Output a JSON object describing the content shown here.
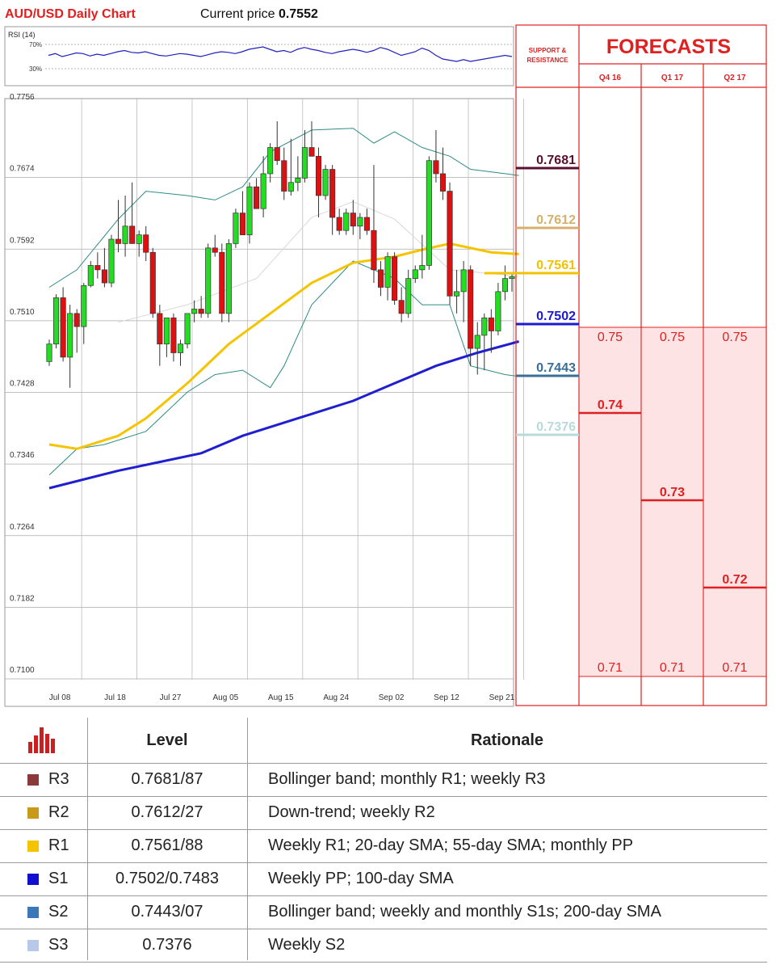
{
  "header": {
    "title": "AUD/USD Daily Chart",
    "price_label": "Current price",
    "price_value": "0.7552"
  },
  "rsi": {
    "label": "RSI (14)",
    "levels": [
      "70%",
      "30%"
    ],
    "values": [
      0.52,
      0.55,
      0.5,
      0.53,
      0.56,
      0.55,
      0.51,
      0.54,
      0.52,
      0.55,
      0.58,
      0.6,
      0.57,
      0.56,
      0.58,
      0.55,
      0.52,
      0.51,
      0.53,
      0.55,
      0.54,
      0.52,
      0.5,
      0.53,
      0.56,
      0.58,
      0.57,
      0.55,
      0.58,
      0.62,
      0.64,
      0.66,
      0.62,
      0.58,
      0.6,
      0.57,
      0.62,
      0.65,
      0.62,
      0.6,
      0.57,
      0.55,
      0.58,
      0.6,
      0.62,
      0.6,
      0.57,
      0.6,
      0.65,
      0.62,
      0.57,
      0.52,
      0.55,
      0.58,
      0.64,
      0.6,
      0.52,
      0.46,
      0.44,
      0.42,
      0.45,
      0.42,
      0.44,
      0.46,
      0.48,
      0.5,
      0.52,
      0.5
    ]
  },
  "chart_data": {
    "type": "candlestick",
    "title": "AUD/USD Daily Chart",
    "ylim": [
      0.71,
      0.7756
    ],
    "y_ticks": [
      "0.7756",
      "0.7674",
      "0.7592",
      "0.7510",
      "0.7428",
      "0.7346",
      "0.7264",
      "0.7182",
      "0.7100"
    ],
    "x_ticks": [
      "Jul 08",
      "Jul 18",
      "Jul 27",
      "Aug 05",
      "Aug 15",
      "Aug 24",
      "Sep 02",
      "Sep 12",
      "Sep 21"
    ],
    "candles": [
      [
        0.7455,
        0.748,
        0.745,
        0.7475
      ],
      [
        0.7475,
        0.7532,
        0.747,
        0.7528
      ],
      [
        0.7528,
        0.754,
        0.7455,
        0.746
      ],
      [
        0.746,
        0.752,
        0.7425,
        0.751
      ],
      [
        0.751,
        0.7515,
        0.7465,
        0.7495
      ],
      [
        0.7495,
        0.7545,
        0.7475,
        0.7542
      ],
      [
        0.7542,
        0.757,
        0.754,
        0.7565
      ],
      [
        0.7565,
        0.758,
        0.755,
        0.756
      ],
      [
        0.756,
        0.7585,
        0.754,
        0.7545
      ],
      [
        0.7545,
        0.76,
        0.754,
        0.7595
      ],
      [
        0.7595,
        0.764,
        0.758,
        0.759
      ],
      [
        0.759,
        0.7645,
        0.7575,
        0.761
      ],
      [
        0.761,
        0.766,
        0.759,
        0.759
      ],
      [
        0.759,
        0.7605,
        0.7575,
        0.76
      ],
      [
        0.76,
        0.761,
        0.757,
        0.758
      ],
      [
        0.758,
        0.7585,
        0.7505,
        0.751
      ],
      [
        0.751,
        0.752,
        0.745,
        0.7475
      ],
      [
        0.7475,
        0.75,
        0.746,
        0.7505
      ],
      [
        0.7505,
        0.751,
        0.7455,
        0.7465
      ],
      [
        0.7465,
        0.748,
        0.745,
        0.7475
      ],
      [
        0.7475,
        0.751,
        0.747,
        0.751
      ],
      [
        0.751,
        0.7525,
        0.75,
        0.7515
      ],
      [
        0.7515,
        0.753,
        0.7505,
        0.751
      ],
      [
        0.751,
        0.759,
        0.7505,
        0.7585
      ],
      [
        0.7585,
        0.76,
        0.7575,
        0.758
      ],
      [
        0.758,
        0.759,
        0.75,
        0.751
      ],
      [
        0.751,
        0.7595,
        0.75,
        0.759
      ],
      [
        0.759,
        0.763,
        0.7585,
        0.7625
      ],
      [
        0.7625,
        0.765,
        0.76,
        0.76
      ],
      [
        0.76,
        0.766,
        0.759,
        0.7655
      ],
      [
        0.7655,
        0.7665,
        0.763,
        0.763
      ],
      [
        0.763,
        0.769,
        0.762,
        0.767
      ],
      [
        0.767,
        0.7705,
        0.766,
        0.77
      ],
      [
        0.77,
        0.773,
        0.768,
        0.7685
      ],
      [
        0.7685,
        0.77,
        0.764,
        0.765
      ],
      [
        0.765,
        0.771,
        0.7645,
        0.766
      ],
      [
        0.766,
        0.769,
        0.765,
        0.7665
      ],
      [
        0.7665,
        0.772,
        0.766,
        0.77
      ],
      [
        0.77,
        0.773,
        0.769,
        0.769
      ],
      [
        0.769,
        0.77,
        0.762,
        0.7645
      ],
      [
        0.7645,
        0.768,
        0.764,
        0.7675
      ],
      [
        0.7675,
        0.768,
        0.76,
        0.762
      ],
      [
        0.762,
        0.763,
        0.76,
        0.7605
      ],
      [
        0.7605,
        0.763,
        0.76,
        0.7625
      ],
      [
        0.7625,
        0.764,
        0.76,
        0.761
      ],
      [
        0.761,
        0.7625,
        0.7595,
        0.762
      ],
      [
        0.762,
        0.763,
        0.76,
        0.7605
      ],
      [
        0.7605,
        0.768,
        0.7545,
        0.756
      ],
      [
        0.756,
        0.757,
        0.753,
        0.754
      ],
      [
        0.754,
        0.758,
        0.7525,
        0.7575
      ],
      [
        0.7575,
        0.758,
        0.752,
        0.7525
      ],
      [
        0.7525,
        0.754,
        0.75,
        0.751
      ],
      [
        0.751,
        0.756,
        0.7505,
        0.755
      ],
      [
        0.755,
        0.7565,
        0.7545,
        0.756
      ],
      [
        0.756,
        0.76,
        0.755,
        0.7565
      ],
      [
        0.7565,
        0.769,
        0.756,
        0.7685
      ],
      [
        0.7685,
        0.772,
        0.766,
        0.767
      ],
      [
        0.767,
        0.77,
        0.764,
        0.765
      ],
      [
        0.765,
        0.766,
        0.752,
        0.753
      ],
      [
        0.753,
        0.756,
        0.751,
        0.7535
      ],
      [
        0.7535,
        0.757,
        0.75,
        0.756
      ],
      [
        0.756,
        0.7565,
        0.745,
        0.747
      ],
      [
        0.747,
        0.75,
        0.744,
        0.7485
      ],
      [
        0.7485,
        0.751,
        0.7445,
        0.7505
      ],
      [
        0.7505,
        0.7515,
        0.7465,
        0.749
      ],
      [
        0.749,
        0.7545,
        0.7485,
        0.7535
      ],
      [
        0.7535,
        0.7565,
        0.7525,
        0.755
      ],
      [
        0.755,
        0.7555,
        0.7535,
        0.7552
      ]
    ],
    "bb_upper": [
      [
        0,
        0.754
      ],
      [
        4,
        0.756
      ],
      [
        10,
        0.7618
      ],
      [
        14,
        0.765
      ],
      [
        20,
        0.7645
      ],
      [
        24,
        0.764
      ],
      [
        28,
        0.7655
      ],
      [
        32,
        0.7695
      ],
      [
        38,
        0.772
      ],
      [
        44,
        0.7722
      ],
      [
        47,
        0.7705
      ],
      [
        50,
        0.7718
      ],
      [
        54,
        0.77
      ],
      [
        58,
        0.769
      ],
      [
        61,
        0.7675
      ],
      [
        66,
        0.767
      ],
      [
        68,
        0.7668
      ]
    ],
    "bb_lower": [
      [
        0,
        0.7325
      ],
      [
        4,
        0.7355
      ],
      [
        8,
        0.736
      ],
      [
        14,
        0.7375
      ],
      [
        20,
        0.742
      ],
      [
        24,
        0.744
      ],
      [
        28,
        0.7445
      ],
      [
        32,
        0.7425
      ],
      [
        34,
        0.745
      ],
      [
        38,
        0.752
      ],
      [
        44,
        0.757
      ],
      [
        50,
        0.755
      ],
      [
        54,
        0.752
      ],
      [
        58,
        0.752
      ],
      [
        61,
        0.745
      ],
      [
        66,
        0.744
      ],
      [
        68,
        0.7438
      ]
    ],
    "bb_mid": [
      [
        10,
        0.75
      ],
      [
        20,
        0.752
      ],
      [
        30,
        0.755
      ],
      [
        38,
        0.762
      ],
      [
        44,
        0.7638
      ],
      [
        50,
        0.7618
      ],
      [
        58,
        0.756
      ],
      [
        66,
        0.7554
      ],
      [
        68,
        0.7552
      ]
    ],
    "sma_yellow": [
      [
        0,
        0.736
      ],
      [
        4,
        0.7355
      ],
      [
        10,
        0.737
      ],
      [
        14,
        0.739
      ],
      [
        20,
        0.743
      ],
      [
        26,
        0.7475
      ],
      [
        32,
        0.751
      ],
      [
        38,
        0.7545
      ],
      [
        44,
        0.7568
      ],
      [
        50,
        0.7575
      ],
      [
        54,
        0.7583
      ],
      [
        58,
        0.759
      ],
      [
        64,
        0.758
      ],
      [
        68,
        0.7578
      ]
    ],
    "sma_blue": [
      [
        0,
        0.731
      ],
      [
        10,
        0.733
      ],
      [
        16,
        0.734
      ],
      [
        22,
        0.735
      ],
      [
        28,
        0.737
      ],
      [
        36,
        0.739
      ],
      [
        44,
        0.741
      ],
      [
        50,
        0.743
      ],
      [
        56,
        0.745
      ],
      [
        62,
        0.7465
      ],
      [
        68,
        0.7478
      ]
    ]
  },
  "support_resistance": {
    "header": [
      "SUPPORT &",
      "RESISTANCE"
    ],
    "levels": [
      {
        "value": "0.7681",
        "color": "#5a0f2f"
      },
      {
        "value": "0.7612",
        "color": "#d6b06c"
      },
      {
        "value": "0.7561",
        "color": "#f2c200"
      },
      {
        "value": "0.7502",
        "color": "#1a1ad0"
      },
      {
        "value": "0.7443",
        "color": "#3a6e9a"
      },
      {
        "value": "0.7376",
        "color": "#b8dada"
      }
    ]
  },
  "forecasts": {
    "title": "FORECASTS",
    "columns": [
      {
        "label": "Q4 16",
        "top": "0.75",
        "mid": "0.74",
        "bottom": "0.71"
      },
      {
        "label": "Q1 17",
        "top": "0.75",
        "mid": "0.73",
        "bottom": "0.71"
      },
      {
        "label": "Q2 17",
        "top": "0.75",
        "mid": "0.72",
        "bottom": "0.71"
      }
    ]
  },
  "table": {
    "headers": {
      "level": "Level",
      "rationale": "Rationale"
    },
    "rows": [
      {
        "name": "R3",
        "color": "#8b3a3a",
        "level": "0.7681/87",
        "rationale": "Bollinger band; monthly R1; weekly R3"
      },
      {
        "name": "R2",
        "color": "#c89a18",
        "level": "0.7612/27",
        "rationale": "Down-trend; weekly R2"
      },
      {
        "name": "R1",
        "color": "#f5c400",
        "level": "0.7561/88",
        "rationale": "Weekly R1; 20-day SMA; 55-day SMA; monthly PP"
      },
      {
        "name": "S1",
        "color": "#1010d0",
        "level": "0.7502/0.7483",
        "rationale": "Weekly PP;  100-day SMA"
      },
      {
        "name": "S2",
        "color": "#3a78b8",
        "level": "0.7443/07",
        "rationale": "Bollinger band; weekly and monthly S1s; 200-day SMA"
      },
      {
        "name": "S3",
        "color": "#b8c8e8",
        "level": "0.7376",
        "rationale": "Weekly S2"
      }
    ]
  }
}
